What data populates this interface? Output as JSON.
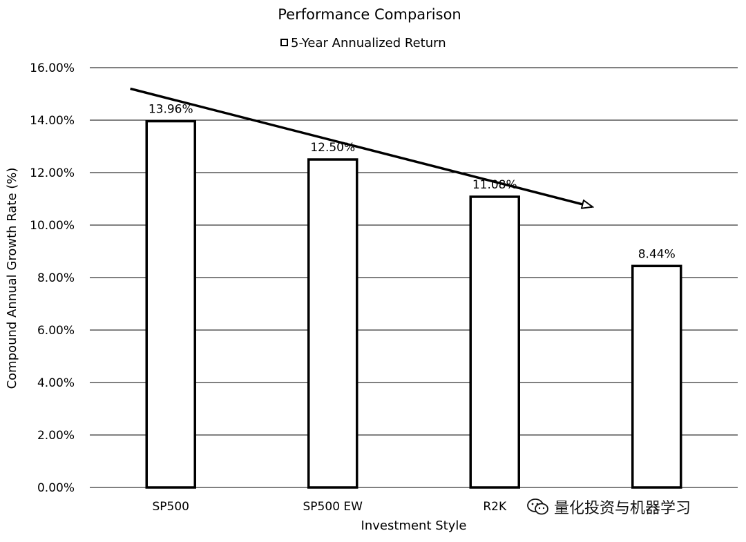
{
  "chart_data": {
    "type": "bar",
    "title": "Performance Comparison",
    "legend": {
      "entries": [
        "5-Year Annualized Return"
      ],
      "placement": "top-center"
    },
    "xlabel": "Investment Style",
    "ylabel": "Compound Annual Growth Rate (%)",
    "categories": [
      "SP500",
      "SP500 EW",
      "R2K",
      ""
    ],
    "series": [
      {
        "name": "5-Year Annualized Return",
        "values": [
          13.96,
          12.5,
          11.08,
          8.44
        ],
        "labels": [
          "13.96%",
          "12.50%",
          "11.08%",
          "8.44%"
        ]
      }
    ],
    "ylim": [
      0,
      16
    ],
    "yticks": [
      0,
      2,
      4,
      6,
      8,
      10,
      12,
      14,
      16
    ],
    "ytick_labels": [
      "0.00%",
      "2.00%",
      "4.00%",
      "6.00%",
      "8.00%",
      "10.00%",
      "12.00%",
      "14.00%",
      "16.00%"
    ],
    "grid": "horizontal",
    "annotation": {
      "type": "arrow",
      "from": {
        "category_index": 0.25,
        "value": 15.2
      },
      "to": {
        "category_index": 3.1,
        "value": 10.7
      },
      "direction": "down-right"
    },
    "colors": {
      "bar_fill": "#ffffff",
      "bar_stroke": "#000000",
      "grid": "#000000",
      "text": "#000000"
    }
  },
  "watermark": {
    "text": "量化投资与机器学习",
    "icon": "wechat-icon"
  }
}
